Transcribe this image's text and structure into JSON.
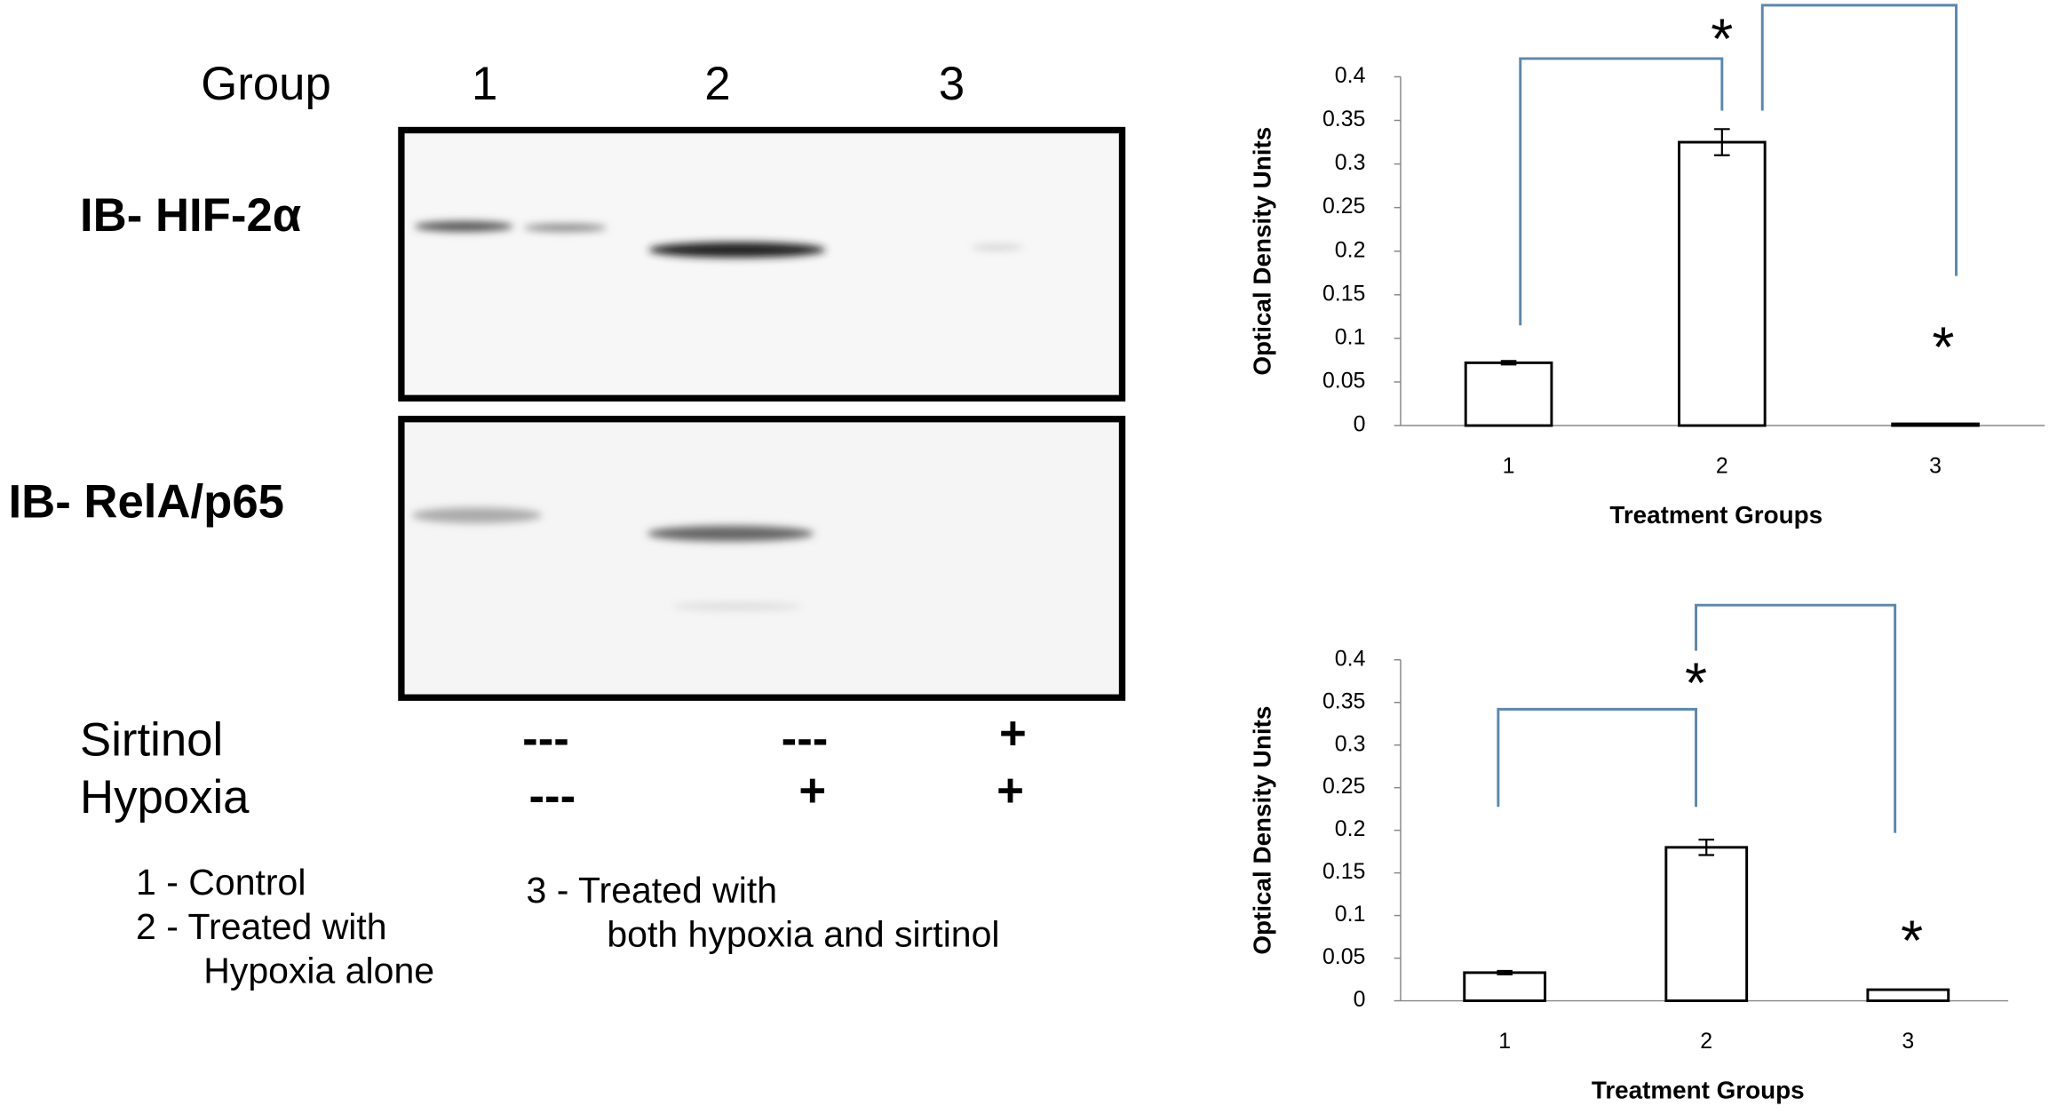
{
  "blot": {
    "group_label": "Group",
    "groups": [
      "1",
      "2",
      "3"
    ],
    "rows": [
      "IB- HIF-2α",
      "IB- RelA/p65"
    ],
    "treatments": [
      {
        "name": "Sirtinol",
        "marks": [
          "---",
          "---",
          "+"
        ]
      },
      {
        "name": "Hypoxia",
        "marks": [
          "---",
          "+",
          "+"
        ]
      }
    ],
    "legend": [
      "1 - Control",
      "2 - Treated with",
      "Hypoxia alone",
      "3 - Treated with",
      "both hypoxia and sirtinol"
    ]
  },
  "chart_data": [
    {
      "type": "bar",
      "x_label": "Treatment Groups",
      "y_label": "Optical Density Units",
      "categories": [
        "1",
        "2",
        "3"
      ],
      "values": [
        0.072,
        0.325,
        0.002
      ],
      "errors": [
        0.002,
        0.015,
        0
      ],
      "color": "#ffffff",
      "ylim": [
        0,
        0.4
      ],
      "yticks": [
        0,
        0.05,
        0.1,
        0.15,
        0.2,
        0.25,
        0.3,
        0.35,
        0.4
      ],
      "annotations": [
        "*",
        "*"
      ]
    },
    {
      "type": "bar",
      "x_label": "Treatment Groups",
      "y_label": "Optical Density Units",
      "categories": [
        "1",
        "2",
        "3"
      ],
      "values": [
        0.033,
        0.18,
        0.013
      ],
      "errors": [
        0.002,
        0.009,
        0
      ],
      "color": "#ffffff",
      "ylim": [
        0,
        0.4
      ],
      "yticks": [
        0,
        0.05,
        0.1,
        0.15,
        0.2,
        0.25,
        0.3,
        0.35,
        0.4
      ],
      "annotations": [
        "*",
        "*"
      ]
    }
  ]
}
